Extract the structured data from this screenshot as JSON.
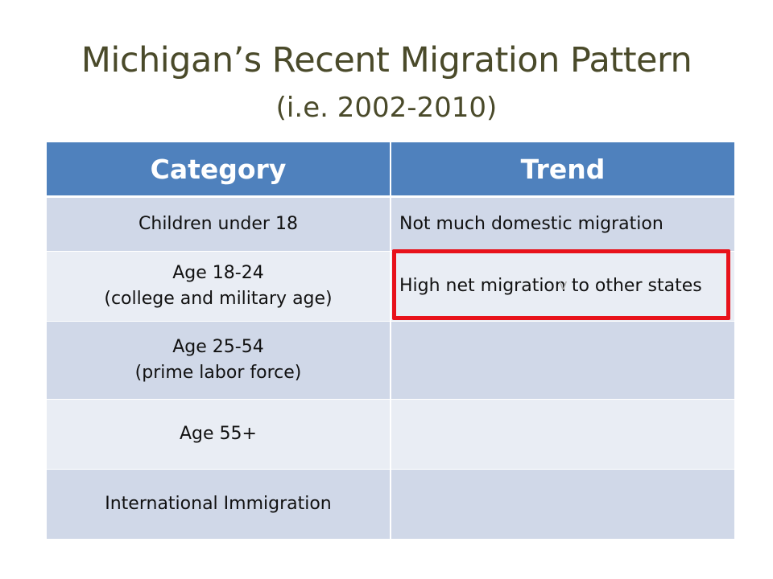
{
  "slide": {
    "title": "Michigan’s Recent Migration Pattern",
    "subtitle": "(i.e. 2002-2010)"
  },
  "table": {
    "headers": [
      "Category",
      "Trend"
    ],
    "rows": [
      {
        "category_line1": "Children under 18",
        "category_line2": "",
        "trend": "Not much domestic migration"
      },
      {
        "category_line1": "Age 18-24",
        "category_line2": "(college and military age)",
        "trend": "High net migration to other states"
      },
      {
        "category_line1": "Age 25-54",
        "category_line2": "(prime labor force)",
        "trend": ""
      },
      {
        "category_line1": "Age 55+",
        "category_line2": "",
        "trend": ""
      },
      {
        "category_line1": "International Immigration",
        "category_line2": "",
        "trend": ""
      }
    ]
  },
  "overlay": {
    "cursor_glyph": "v",
    "highlight_color": "#e8121b"
  },
  "colors": {
    "header_bg": "#4f81bd",
    "row_dark": "#d0d8e8",
    "row_light": "#e9edf4",
    "title_text": "#4a4a2a"
  }
}
